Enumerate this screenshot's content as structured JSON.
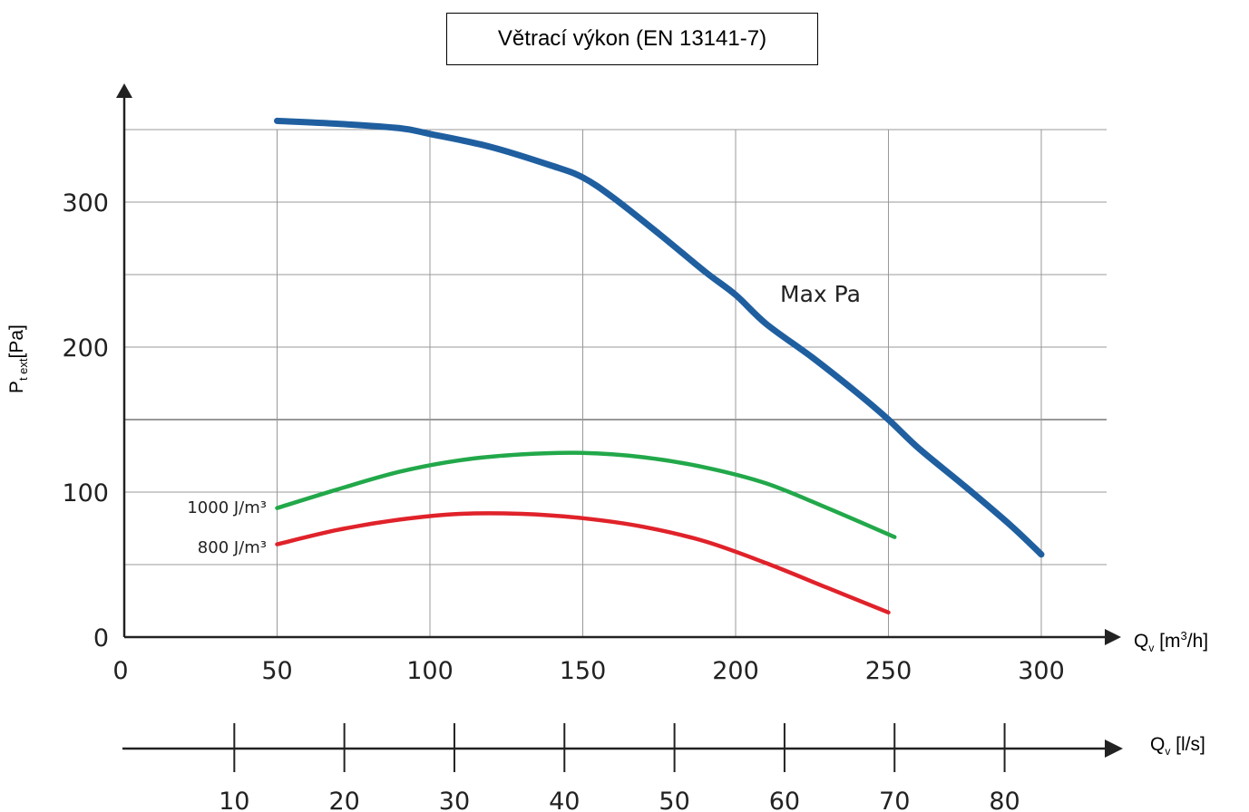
{
  "chart_data": {
    "type": "line",
    "title": "Větrací výkon (EN 13141-7)",
    "ylabel": {
      "main": "P",
      "sub": "t ext",
      "unit": "[Pa]"
    },
    "xlabel": {
      "main": "Q",
      "sub": "v",
      "unit_pre": " [m",
      "unit_sup": "3",
      "unit_post": "/h]"
    },
    "x2label": {
      "main": "Q",
      "sub": "v",
      "unit": " [l/s]"
    },
    "xlim": [
      0,
      300
    ],
    "ylim": [
      0,
      350
    ],
    "x_ticks": [
      "0",
      "50",
      "100",
      "150",
      "200",
      "250",
      "300"
    ],
    "y_ticks": [
      "0",
      "100",
      "200",
      "300"
    ],
    "x2_ticks": [
      "10",
      "20",
      "30",
      "40",
      "50",
      "60",
      "70",
      "80"
    ],
    "grid": true,
    "series": [
      {
        "name": "Max Pa",
        "color": "#1f5fa0",
        "points": [
          [
            50,
            356
          ],
          [
            70,
            354
          ],
          [
            90,
            351
          ],
          [
            100,
            347
          ],
          [
            120,
            338
          ],
          [
            140,
            325
          ],
          [
            150,
            317
          ],
          [
            160,
            303
          ],
          [
            175,
            278
          ],
          [
            190,
            252
          ],
          [
            200,
            236
          ],
          [
            210,
            216
          ],
          [
            225,
            193
          ],
          [
            240,
            168
          ],
          [
            250,
            150
          ],
          [
            260,
            130
          ],
          [
            275,
            104
          ],
          [
            290,
            77
          ],
          [
            300,
            57
          ]
        ]
      },
      {
        "name": "1000 J/m³",
        "color": "#22a84a",
        "points": [
          [
            50,
            89
          ],
          [
            70,
            102
          ],
          [
            90,
            114
          ],
          [
            110,
            122
          ],
          [
            130,
            126
          ],
          [
            150,
            127
          ],
          [
            170,
            124
          ],
          [
            190,
            117
          ],
          [
            210,
            106
          ],
          [
            230,
            89
          ],
          [
            252,
            69
          ]
        ]
      },
      {
        "name": "800 J/m³",
        "color": "#e0222a",
        "points": [
          [
            50,
            64
          ],
          [
            70,
            74
          ],
          [
            90,
            81
          ],
          [
            110,
            85
          ],
          [
            130,
            85
          ],
          [
            150,
            82
          ],
          [
            170,
            76
          ],
          [
            190,
            66
          ],
          [
            210,
            51
          ],
          [
            230,
            34
          ],
          [
            250,
            17
          ]
        ]
      }
    ]
  }
}
